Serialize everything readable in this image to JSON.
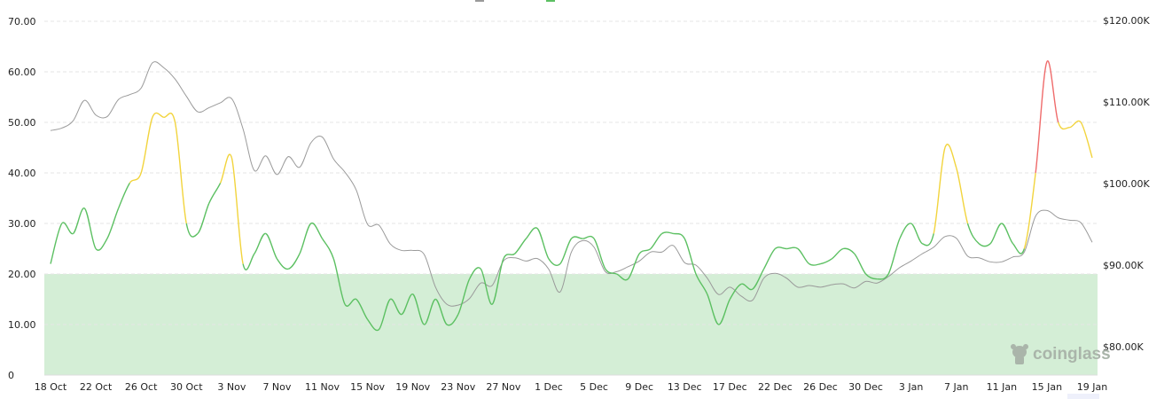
{
  "chart_data": {
    "type": "line",
    "title": "",
    "xlabel": "",
    "ylabel": "",
    "x_ticks": [
      "18 Oct",
      "22 Oct",
      "26 Oct",
      "30 Oct",
      "3 Nov",
      "7 Nov",
      "11 Nov",
      "15 Nov",
      "19 Nov",
      "23 Nov",
      "27 Nov",
      "1 Dec",
      "5 Dec",
      "9 Dec",
      "13 Dec",
      "17 Dec",
      "22 Dec",
      "26 Dec",
      "30 Dec",
      "3 Jan",
      "7 Jan",
      "11 Jan",
      "15 Jan",
      "19 Jan"
    ],
    "y_left": {
      "range": [
        0,
        70
      ],
      "ticks": [
        "0",
        "10.00",
        "20.00",
        "30.00",
        "40.00",
        "50.00",
        "60.00",
        "70.00"
      ]
    },
    "y_right": {
      "range": [
        76,
        120
      ],
      "ticks": [
        "$80.00K",
        "$90.00K",
        "$100.00K",
        "$110.00K",
        "$120.00K"
      ],
      "tick_values": [
        80,
        90,
        100,
        110,
        120
      ]
    },
    "grid": true,
    "legend": "top (cut off)",
    "highlight_band": {
      "from": 0,
      "to": 20,
      "color": "#d4eed6"
    },
    "series": [
      {
        "axis": "left",
        "color_rules": [
          {
            "below": 40,
            "color": "#5cc062"
          },
          {
            "below": 60,
            "color": "#f2d43d"
          },
          {
            "below": 999,
            "color": "#ef6b6b"
          }
        ],
        "values": [
          22,
          30,
          28,
          33,
          25,
          27,
          33,
          38,
          40,
          51,
          51,
          50,
          30,
          28,
          34,
          38,
          43,
          22,
          24,
          28,
          23,
          21,
          24,
          30,
          27,
          23,
          14,
          15,
          11,
          9,
          15,
          12,
          16,
          10,
          15,
          10,
          12,
          19,
          21,
          14,
          23,
          24,
          27,
          29,
          23,
          22,
          27,
          27,
          27,
          21,
          20,
          19,
          24,
          25,
          28,
          28,
          27,
          20,
          16,
          10,
          15,
          18,
          17,
          21,
          25,
          25,
          25,
          22,
          22,
          23,
          25,
          24,
          20,
          19,
          20,
          27,
          30,
          26,
          28,
          45,
          41,
          30,
          26,
          26,
          30,
          26,
          25,
          40,
          62,
          50,
          49,
          50,
          43
        ]
      },
      {
        "axis": "right",
        "unit": "K USD",
        "color": "#9a9a9a",
        "values": [
          106.5,
          106.8,
          107.7,
          110.2,
          108.4,
          108.2,
          110.3,
          110.9,
          111.7,
          114.8,
          114.2,
          112.8,
          110.7,
          108.8,
          109.3,
          109.9,
          110.4,
          106.7,
          101.6,
          103.4,
          101.1,
          103.3,
          102.0,
          105.0,
          105.7,
          103.0,
          101.4,
          99.2,
          95.0,
          94.9,
          92.6,
          91.8,
          91.8,
          91.3,
          87.3,
          85.2,
          85.1,
          85.9,
          87.8,
          87.5,
          90.5,
          90.9,
          90.5,
          90.8,
          89.5,
          86.7,
          91.6,
          93.0,
          92.2,
          89.2,
          89.2,
          89.8,
          90.5,
          91.6,
          91.6,
          92.4,
          90.3,
          90.0,
          88.4,
          86.4,
          87.3,
          86.2,
          85.7,
          88.4,
          89.0,
          88.4,
          87.3,
          87.5,
          87.3,
          87.6,
          87.7,
          87.2,
          88.0,
          87.8,
          88.6,
          89.7,
          90.5,
          91.4,
          92.2,
          93.5,
          93.3,
          91.1,
          90.9,
          90.4,
          90.4,
          91.0,
          91.6,
          96.0,
          96.7,
          95.8,
          95.5,
          95.2,
          92.8
        ]
      }
    ],
    "legend_swatches": [
      "#9a9a9a",
      "#5cc062"
    ]
  },
  "watermark": "coinglass"
}
